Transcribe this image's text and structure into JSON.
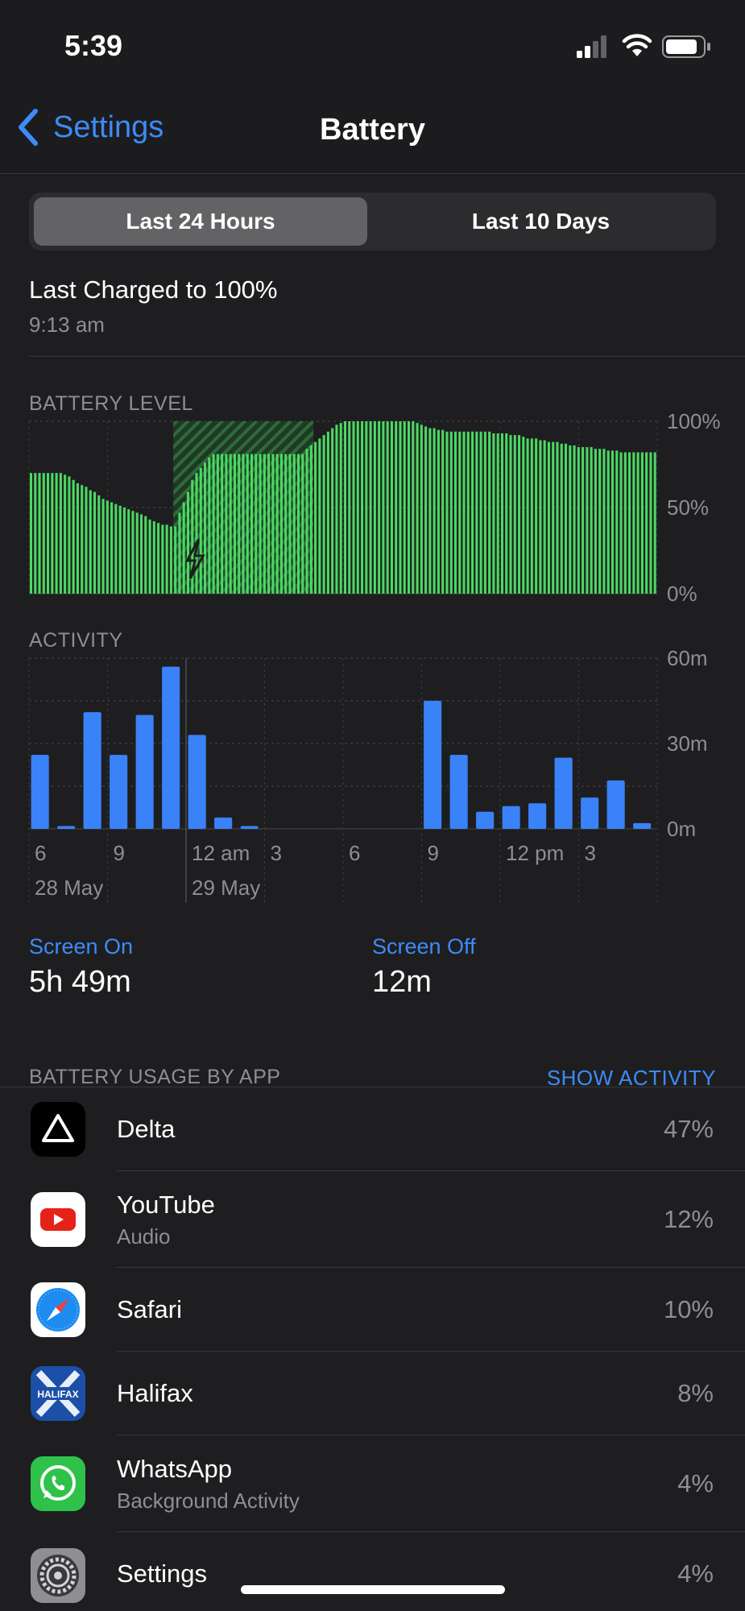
{
  "status_bar": {
    "time": "5:39"
  },
  "nav": {
    "back_label": "Settings",
    "title": "Battery"
  },
  "segments": {
    "left": "Last 24 Hours",
    "right": "Last 10 Days",
    "selected": "Last 24 Hours"
  },
  "last_charged": {
    "title": "Last Charged to 100%",
    "time": "9:13 am"
  },
  "battery_level": {
    "heading": "BATTERY LEVEL",
    "y_ticks": [
      "100%",
      "50%",
      "0%"
    ]
  },
  "activity": {
    "heading": "ACTIVITY",
    "y_ticks": [
      "60m",
      "30m",
      "0m"
    ]
  },
  "x_axis": {
    "hour_labels": [
      "6",
      "9",
      "12 am",
      "3",
      "6",
      "9",
      "12 pm",
      "3"
    ],
    "date_labels": [
      "28 May",
      "29 May"
    ]
  },
  "screen": {
    "on_label": "Screen On",
    "on_value": "5h 49m",
    "off_label": "Screen Off",
    "off_value": "12m"
  },
  "usage": {
    "heading": "BATTERY USAGE BY APP",
    "action": "SHOW ACTIVITY"
  },
  "apps": [
    {
      "name": "Delta",
      "sub": "",
      "pct": "47%",
      "icon": "delta-icon"
    },
    {
      "name": "YouTube",
      "sub": "Audio",
      "pct": "12%",
      "icon": "youtube-icon"
    },
    {
      "name": "Safari",
      "sub": "",
      "pct": "10%",
      "icon": "safari-icon"
    },
    {
      "name": "Halifax",
      "sub": "",
      "pct": "8%",
      "icon": "halifax-icon",
      "icon_text": "HALIFAX"
    },
    {
      "name": "WhatsApp",
      "sub": "Background Activity",
      "pct": "4%",
      "icon": "whatsapp-icon"
    },
    {
      "name": "Settings",
      "sub": "",
      "pct": "4%",
      "icon": "settings-icon"
    }
  ],
  "colors": {
    "accent": "#3d8bf7",
    "battery_green": "#4cd964",
    "activity_blue": "#3a82f7",
    "background": "#1c1c1e"
  },
  "chart_data": [
    {
      "type": "bar",
      "title": "BATTERY LEVEL",
      "ylim": [
        0,
        100
      ],
      "y_unit": "%",
      "grid": true,
      "values": [
        70,
        70,
        70,
        70,
        70,
        70,
        70,
        70,
        69,
        68,
        66,
        64,
        63,
        62,
        60,
        59,
        57,
        55,
        54,
        53,
        52,
        51,
        50,
        49,
        48,
        47,
        46,
        45,
        43,
        42,
        41,
        40,
        40,
        39,
        39,
        47,
        53,
        59,
        66,
        70,
        73,
        76,
        79,
        81,
        81,
        81,
        81,
        81,
        81,
        81,
        81,
        81,
        81,
        81,
        81,
        81,
        81,
        81,
        81,
        81,
        81,
        81,
        81,
        81,
        81,
        84,
        86,
        88,
        90,
        92,
        94,
        96,
        98,
        99,
        100,
        100,
        100,
        100,
        100,
        100,
        100,
        100,
        100,
        100,
        100,
        100,
        100,
        100,
        100,
        100,
        100,
        99,
        98,
        97,
        96,
        96,
        95,
        95,
        94,
        94,
        94,
        94,
        94,
        94,
        94,
        94,
        94,
        94,
        94,
        93,
        93,
        93,
        93,
        92,
        92,
        92,
        91,
        90,
        90,
        90,
        89,
        89,
        88,
        88,
        88,
        87,
        87,
        86,
        86,
        85,
        85,
        85,
        85,
        84,
        84,
        84,
        83,
        83,
        83,
        82,
        82,
        82,
        82,
        82,
        82,
        82,
        82,
        82
      ],
      "charging_ranges": [
        [
          34,
          37
        ],
        [
          38,
          66
        ]
      ],
      "charging_glyph": "bolt-icon"
    },
    {
      "type": "bar",
      "title": "ACTIVITY",
      "ylim": [
        0,
        60
      ],
      "y_unit": "m",
      "grid": true,
      "values": [
        26,
        1,
        41,
        26,
        40,
        57,
        33,
        4,
        1,
        0,
        0,
        0,
        0,
        0,
        0,
        45,
        26,
        6,
        8,
        9,
        25,
        11,
        17,
        2
      ]
    }
  ]
}
